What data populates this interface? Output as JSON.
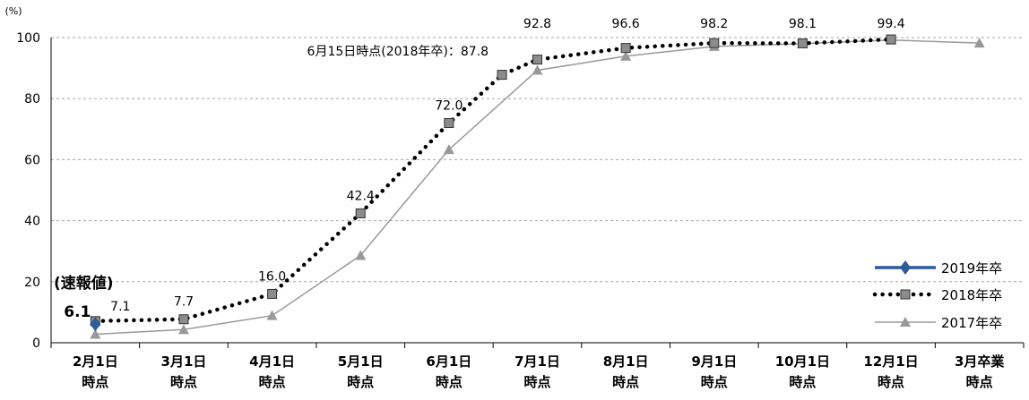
{
  "chart_data": {
    "type": "line",
    "y_unit_label": "(%)",
    "ylim": [
      0,
      100
    ],
    "yticks": [
      0,
      20,
      40,
      60,
      80,
      100
    ],
    "grid": "horizontal dashed",
    "legend_position": "bottom-right",
    "categories": [
      [
        "2月1日",
        "時点"
      ],
      [
        "3月1日",
        "時点"
      ],
      [
        "4月1日",
        "時点"
      ],
      [
        "5月1日",
        "時点"
      ],
      [
        "6月1日",
        "時点"
      ],
      [
        "7月1日",
        "時点"
      ],
      [
        "8月1日",
        "時点"
      ],
      [
        "9月1日",
        "時点"
      ],
      [
        "10月1日",
        "時点"
      ],
      [
        "12月1日",
        "時点"
      ],
      [
        "3月卒業",
        "時点"
      ]
    ],
    "series": [
      {
        "name": "2019年卒",
        "color": "#2e5c99",
        "style": "solid-thick",
        "marker": "diamond",
        "values": [
          6.1,
          null,
          null,
          null,
          null,
          null,
          null,
          null,
          null,
          null,
          null
        ]
      },
      {
        "name": "2018年卒",
        "color": "#000000",
        "style": "dotted",
        "marker": "square",
        "values": [
          7.1,
          7.7,
          16.0,
          42.4,
          72.0,
          92.8,
          96.6,
          98.2,
          98.1,
          99.4,
          null
        ],
        "extra_point": {
          "x_index": 4.6,
          "value": 87.8
        }
      },
      {
        "name": "2017年卒",
        "color": "#999999",
        "style": "solid-thin",
        "marker": "triangle",
        "values": [
          2.8,
          4.3,
          8.9,
          28.6,
          63.3,
          89.3,
          93.9,
          97.1,
          98.0,
          99.2,
          98.2
        ]
      }
    ],
    "data_labels": [
      {
        "series": 0,
        "index": 0,
        "text": "6.1"
      },
      {
        "series": 1,
        "index": 0,
        "text": "7.1"
      },
      {
        "series": 1,
        "index": 1,
        "text": "7.7"
      },
      {
        "series": 1,
        "index": 2,
        "text": "16.0"
      },
      {
        "series": 1,
        "index": 3,
        "text": "42.4"
      },
      {
        "series": 1,
        "index": 4,
        "text": "72.0"
      },
      {
        "series": 1,
        "index": 5,
        "text": "92.8"
      },
      {
        "series": 1,
        "index": 6,
        "text": "96.6"
      },
      {
        "series": 1,
        "index": 7,
        "text": "98.2"
      },
      {
        "series": 1,
        "index": 8,
        "text": "98.1"
      },
      {
        "series": 1,
        "index": 9,
        "text": "99.4"
      }
    ],
    "annotations": {
      "preliminary": "(速報値)",
      "june15": "6月15日時点(2018年卒)：87.8"
    }
  }
}
